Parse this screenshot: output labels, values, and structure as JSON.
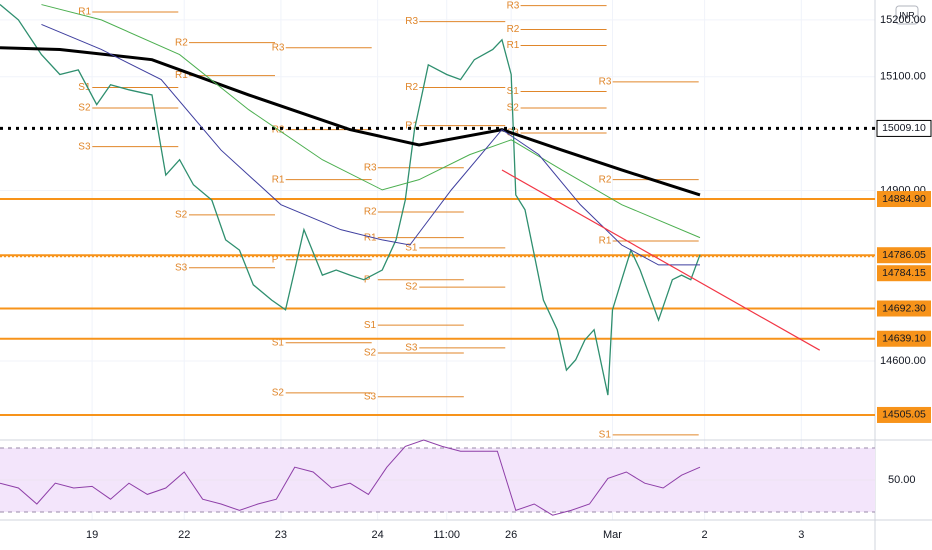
{
  "chart_data": {
    "type": "line",
    "currency": "INR",
    "xlim": [
      0,
      190
    ],
    "xticks": [
      {
        "value": 20,
        "label": "19"
      },
      {
        "value": 40,
        "label": "22"
      },
      {
        "value": 61,
        "label": "23"
      },
      {
        "value": 82,
        "label": "24"
      },
      {
        "value": 97,
        "label": "11:00"
      },
      {
        "value": 111,
        "label": "26"
      },
      {
        "value": 133,
        "label": "Mar"
      },
      {
        "value": 153,
        "label": "2"
      },
      {
        "value": 174,
        "label": "3"
      }
    ],
    "ylim": [
      14461,
      15235
    ],
    "yticks": [
      {
        "value": 15200,
        "label": "15200.00"
      },
      {
        "value": 15100,
        "label": "15100.00"
      },
      {
        "value": 14900,
        "label": "14900.00"
      },
      {
        "value": 14600,
        "label": "14600.00"
      }
    ],
    "series": [
      {
        "color": "#2f8f6f",
        "width": 1.3,
        "x": [
          0,
          4,
          9,
          13,
          17,
          21,
          24,
          28,
          33,
          36,
          39,
          42,
          46,
          49,
          52,
          55,
          59,
          62,
          64,
          66,
          70,
          73,
          76,
          79,
          83,
          86,
          88,
          90,
          93,
          97,
          100,
          103,
          107,
          109,
          111,
          112,
          114,
          116,
          118,
          121,
          123,
          125,
          127,
          129,
          132,
          133,
          135,
          137,
          139,
          141,
          143,
          146,
          148,
          150,
          152
        ],
        "values": [
          15227,
          15200,
          15139,
          15104,
          15112,
          15051,
          15086,
          15077,
          15068,
          14927,
          14954,
          14910,
          14883,
          14813,
          14795,
          14734,
          14707,
          14690,
          14760,
          14831,
          14751,
          14760,
          14751,
          14743,
          14760,
          14813,
          14883,
          15007,
          15121,
          15104,
          15095,
          15130,
          15148,
          15165,
          15104,
          14892,
          14866,
          14787,
          14707,
          14655,
          14584,
          14602,
          14637,
          14655,
          14540,
          14690,
          14743,
          14795,
          14760,
          14716,
          14672,
          14743,
          14751,
          14743,
          14787
        ]
      },
      {
        "color": "#000000",
        "width": 3,
        "x": [
          0,
          13,
          33,
          54,
          76,
          91,
          109,
          122,
          135,
          152
        ],
        "values": [
          15151,
          15148,
          15130,
          15068,
          15007,
          14980,
          15007,
          14971,
          14936,
          14892
        ]
      },
      {
        "color": "#4caf50",
        "width": 1,
        "x": [
          9,
          22,
          39,
          54,
          70,
          83,
          91,
          102,
          111,
          122,
          135,
          152
        ],
        "values": [
          15227,
          15200,
          15139,
          15042,
          14954,
          14901,
          14919,
          14963,
          14989,
          14936,
          14875,
          14817
        ]
      },
      {
        "color": "#3f3f9f",
        "width": 1,
        "x": [
          9,
          22,
          35,
          48,
          61,
          74,
          83,
          89,
          98,
          109,
          117,
          126,
          135,
          143,
          152
        ],
        "values": [
          15192,
          15148,
          15095,
          14971,
          14875,
          14831,
          14813,
          14804,
          14901,
          15007,
          14963,
          14875,
          14804,
          14769,
          14769
        ]
      }
    ],
    "levels": [
      {
        "value": 15009.1,
        "label": "15009.10",
        "color": "#000000",
        "style": "dotted"
      },
      {
        "value": 14884.9,
        "label": "14884.90",
        "color": "#f7931a",
        "style": "solid"
      },
      {
        "value": 14786.05,
        "label": "14786.05",
        "color": "#f7931a",
        "style": "solid"
      },
      {
        "value": 14784.15,
        "label": "14784.15",
        "color": "#f7931a",
        "style": "dotted"
      },
      {
        "value": 14692.3,
        "label": "14692.30",
        "color": "#f7931a",
        "style": "solid"
      },
      {
        "value": 14639.1,
        "label": "14639.10",
        "color": "#f7931a",
        "style": "solid"
      },
      {
        "value": 14505.05,
        "label": "14505.05",
        "color": "#f7931a",
        "style": "solid"
      }
    ],
    "trendlines": [
      {
        "x": [
          109,
          178
        ],
        "values": [
          14936,
          14619
        ],
        "color": "#f23645"
      }
    ],
    "pivots": [
      {
        "label": "R1",
        "value": 15214,
        "x": 17
      },
      {
        "label": "S1",
        "value": 15081,
        "x": 17
      },
      {
        "label": "S2",
        "value": 15045,
        "x": 17
      },
      {
        "label": "S3",
        "value": 14977,
        "x": 17
      },
      {
        "label": "R2",
        "value": 15160,
        "x": 38
      },
      {
        "label": "R1",
        "value": 15102,
        "x": 38
      },
      {
        "label": "S2",
        "value": 14857,
        "x": 38
      },
      {
        "label": "S3",
        "value": 14764,
        "x": 38
      },
      {
        "label": "R3",
        "value": 15151,
        "x": 59
      },
      {
        "label": "R2",
        "value": 15007,
        "x": 59
      },
      {
        "label": "R1",
        "value": 14919,
        "x": 59
      },
      {
        "label": "P",
        "value": 14778,
        "x": 59
      },
      {
        "label": "S1",
        "value": 14632,
        "x": 59
      },
      {
        "label": "S2",
        "value": 14544,
        "x": 59
      },
      {
        "label": "R3",
        "value": 14940,
        "x": 79
      },
      {
        "label": "R2",
        "value": 14862,
        "x": 79
      },
      {
        "label": "R1",
        "value": 14817,
        "x": 79
      },
      {
        "label": "P",
        "value": 14743,
        "x": 79
      },
      {
        "label": "S1",
        "value": 14663,
        "x": 79
      },
      {
        "label": "S2",
        "value": 14614,
        "x": 79
      },
      {
        "label": "S3",
        "value": 14537,
        "x": 79
      },
      {
        "label": "R3",
        "value": 15197,
        "x": 88
      },
      {
        "label": "R2",
        "value": 15081,
        "x": 88
      },
      {
        "label": "R1",
        "value": 15014,
        "x": 88
      },
      {
        "label": "S1",
        "value": 14799,
        "x": 88
      },
      {
        "label": "S2",
        "value": 14730,
        "x": 88
      },
      {
        "label": "S3",
        "value": 14623,
        "x": 88
      },
      {
        "label": "R3",
        "value": 15225,
        "x": 110
      },
      {
        "label": "R2",
        "value": 15183,
        "x": 110
      },
      {
        "label": "R1",
        "value": 15155,
        "x": 110
      },
      {
        "label": "S1",
        "value": 15074,
        "x": 110
      },
      {
        "label": "S2",
        "value": 15045,
        "x": 110
      },
      {
        "label": "S3",
        "value": 15001,
        "x": 110
      },
      {
        "label": "R3",
        "value": 15091,
        "x": 130
      },
      {
        "label": "R2",
        "value": 14919,
        "x": 130
      },
      {
        "label": "R1",
        "value": 14811,
        "x": 130
      },
      {
        "label": "S1",
        "value": 14470,
        "x": 130
      }
    ],
    "rsi": {
      "ylim": [
        25,
        75
      ],
      "yticks": [
        {
          "value": 50,
          "label": "50.00"
        }
      ],
      "band": [
        30,
        70
      ],
      "color": "#8e3fa8",
      "x": [
        0,
        4,
        8,
        12,
        16,
        20,
        24,
        28,
        32,
        36,
        40,
        44,
        48,
        52,
        56,
        60,
        64,
        68,
        72,
        76,
        80,
        84,
        88,
        92,
        96,
        100,
        104,
        108,
        112,
        116,
        120,
        124,
        128,
        132,
        136,
        140,
        144,
        148,
        152
      ],
      "values": [
        48,
        45,
        35,
        48,
        45,
        46,
        38,
        48,
        41,
        45,
        55,
        38,
        35,
        31,
        35,
        38,
        58,
        55,
        45,
        48,
        41,
        58,
        71,
        75,
        71,
        68,
        68,
        68,
        31,
        35,
        28,
        31,
        35,
        51,
        55,
        48,
        45,
        53,
        58
      ]
    }
  }
}
